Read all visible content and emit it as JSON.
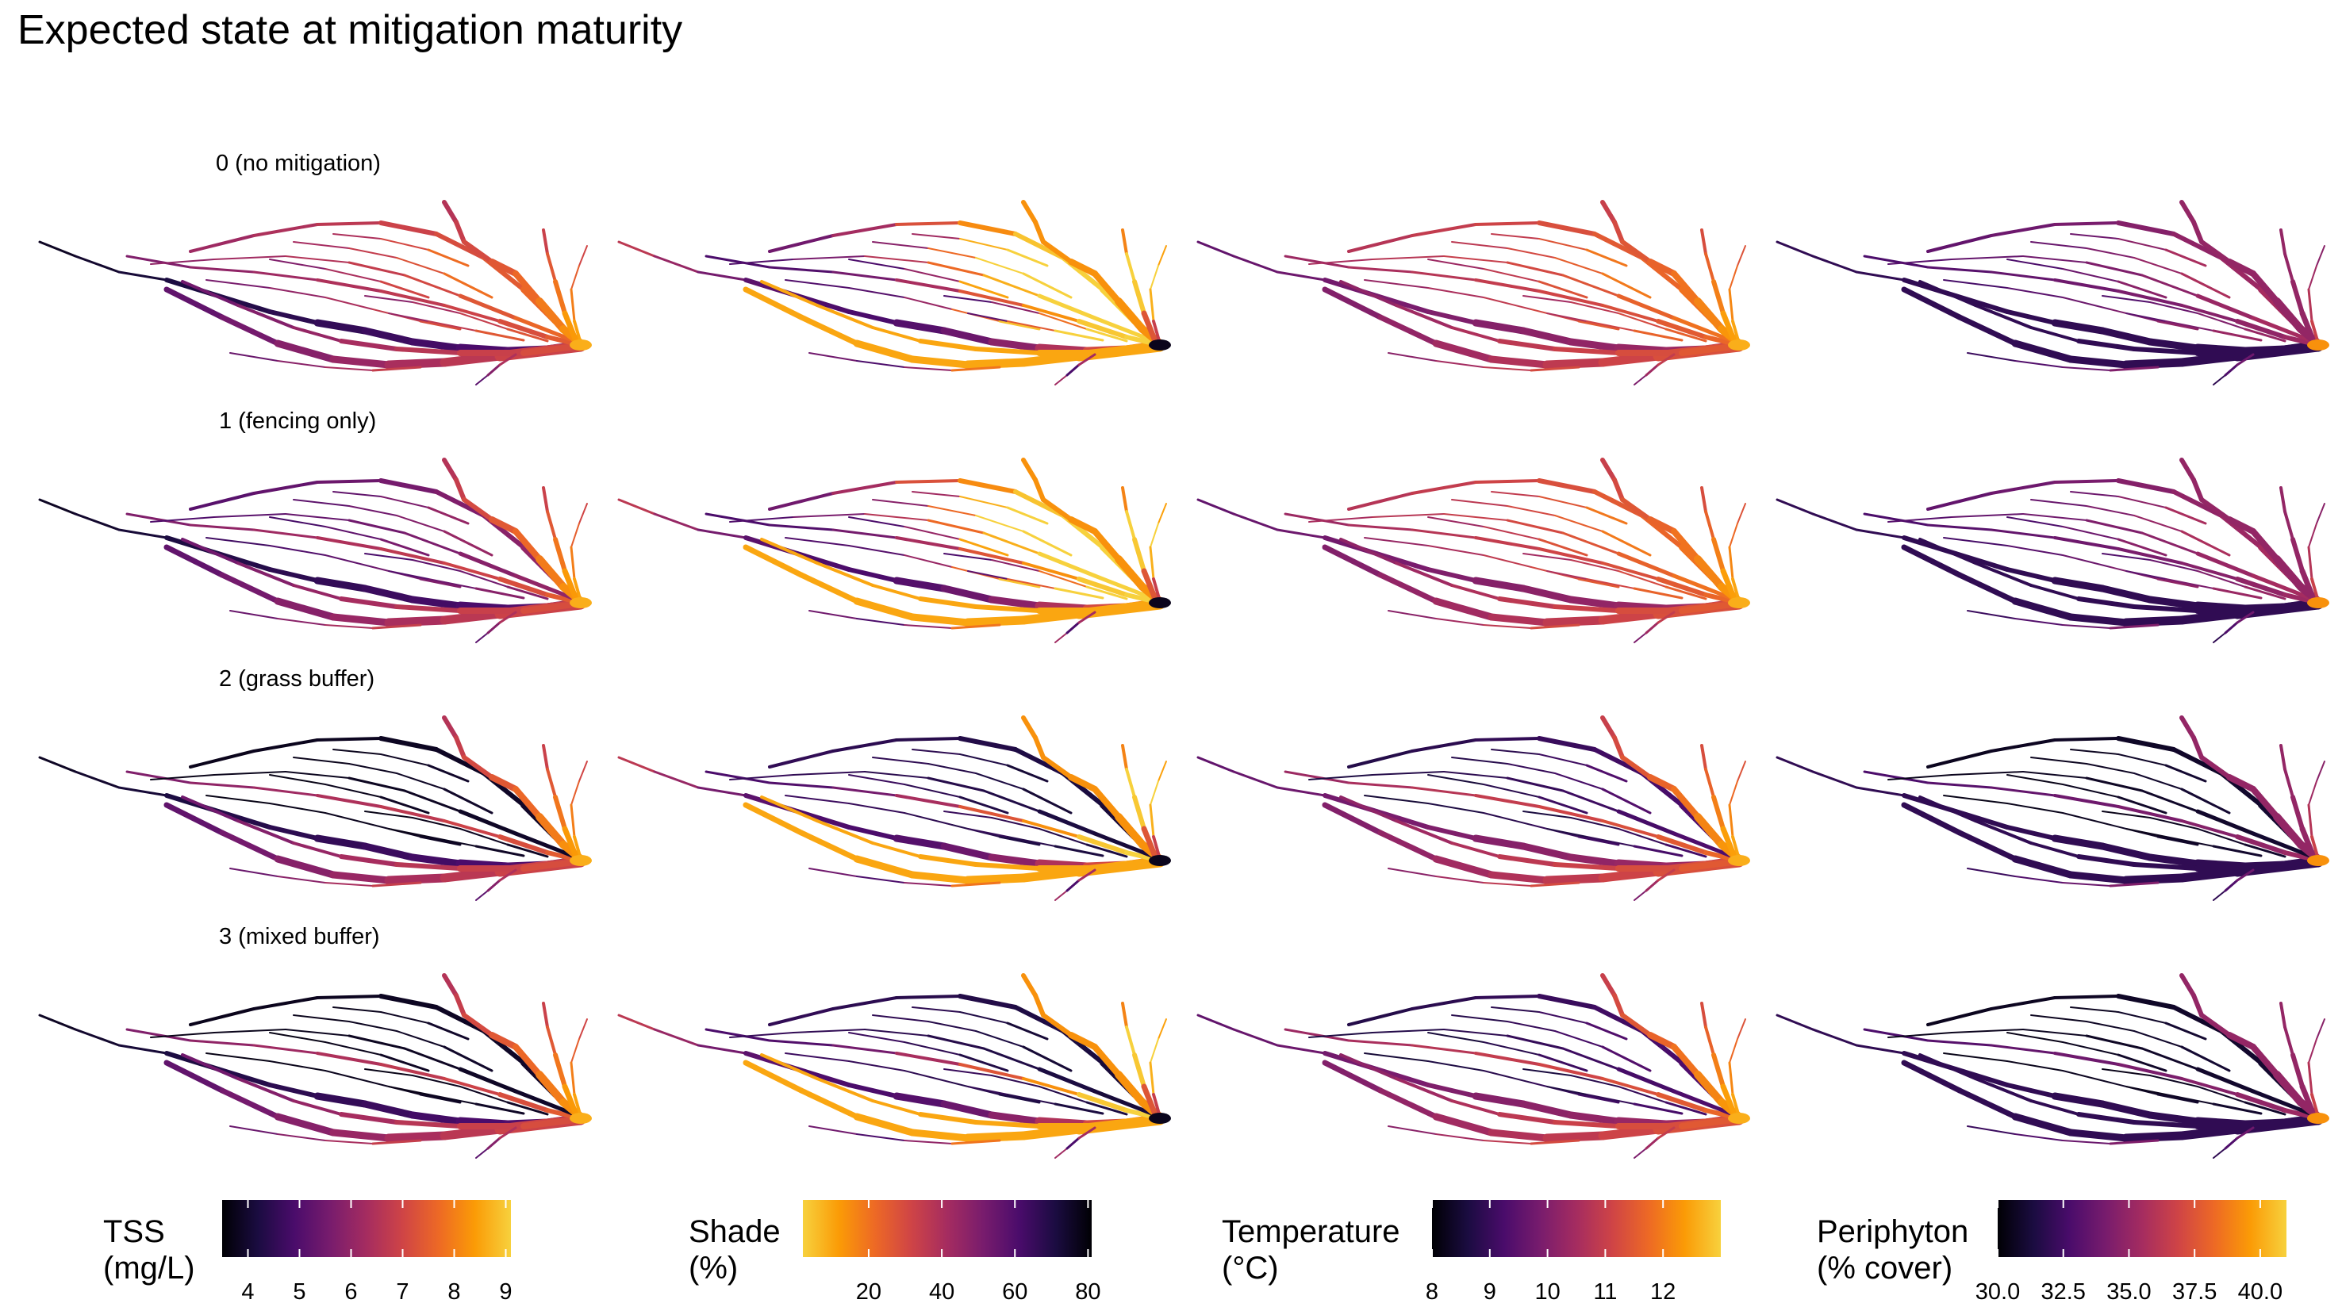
{
  "title": "Expected state at mitigation maturity",
  "palette": {
    "inferno": [
      "#000004",
      "#1b0c41",
      "#4a0c6b",
      "#781c6d",
      "#a52c60",
      "#cf4446",
      "#ed6925",
      "#fb9b06",
      "#f7d13d"
    ]
  },
  "chart_data": {
    "type": "heatmap",
    "description_type": "faceted river-network maps (4 scenarios x 4 variables)",
    "rows": [
      {
        "label": "0 (no mitigation)"
      },
      {
        "label": "1 (fencing only)"
      },
      {
        "label": "2 (grass buffer)"
      },
      {
        "label": "3 (mixed buffer)"
      }
    ],
    "variables": [
      {
        "key": "tss",
        "legend_title_1": "TSS",
        "legend_title_2": "(mg/L)",
        "range": [
          3.5,
          9.1
        ],
        "reversed": false,
        "ticks": [
          4,
          5,
          6,
          7,
          8,
          9
        ],
        "tick_labels": [
          "4",
          "5",
          "6",
          "7",
          "8",
          "9"
        ]
      },
      {
        "key": "shade",
        "legend_title_1": "Shade",
        "legend_title_2": "(%)",
        "range": [
          2,
          81
        ],
        "reversed": true,
        "ticks": [
          20,
          40,
          60,
          80
        ],
        "tick_labels": [
          "20",
          "40",
          "60",
          "80"
        ]
      },
      {
        "key": "temperature",
        "legend_title_1": "Temperature",
        "legend_title_2": "(°C)",
        "range": [
          8,
          13
        ],
        "reversed": false,
        "ticks": [
          8,
          9,
          10,
          11,
          12
        ],
        "tick_labels": [
          "8",
          "9",
          "10",
          "11",
          "12"
        ]
      },
      {
        "key": "periphyton",
        "legend_title_1": "Periphyton",
        "legend_title_2": "(% cover)",
        "range": [
          30,
          41
        ],
        "reversed": false,
        "ticks": [
          30,
          32.5,
          35,
          37.5,
          40
        ],
        "tick_labels": [
          "30.0",
          "32.5",
          "35.0",
          "37.5",
          "40.0"
        ]
      }
    ]
  }
}
